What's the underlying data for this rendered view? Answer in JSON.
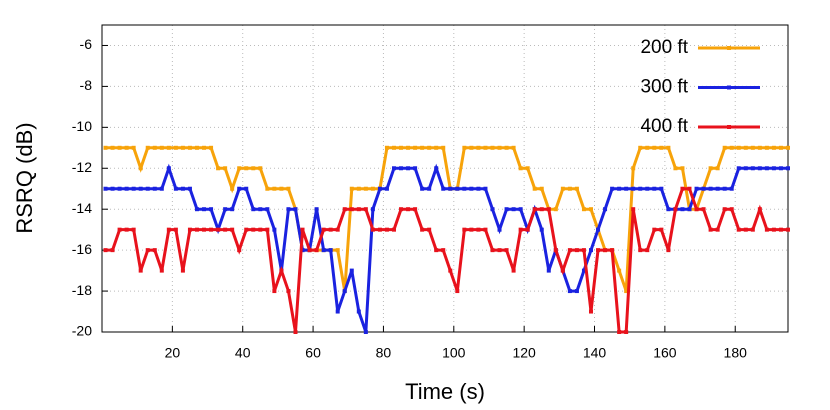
{
  "chart_data": {
    "type": "line",
    "xlabel": "Time (s)",
    "ylabel": "RSRQ (dB)",
    "x": [
      1,
      3,
      5,
      7,
      9,
      11,
      13,
      15,
      17,
      19,
      21,
      23,
      25,
      27,
      29,
      31,
      33,
      35,
      37,
      39,
      41,
      43,
      45,
      47,
      49,
      51,
      53,
      55,
      57,
      59,
      61,
      63,
      65,
      67,
      69,
      71,
      73,
      75,
      77,
      79,
      81,
      83,
      85,
      87,
      89,
      91,
      93,
      95,
      97,
      99,
      101,
      103,
      105,
      107,
      109,
      111,
      113,
      115,
      117,
      119,
      121,
      123,
      125,
      127,
      129,
      131,
      133,
      135,
      137,
      139,
      141,
      143,
      145,
      147,
      149,
      151,
      153,
      155,
      157,
      159,
      161,
      163,
      165,
      167,
      169,
      171,
      173,
      175,
      177,
      179,
      181,
      183,
      185,
      187,
      189,
      191,
      193,
      195
    ],
    "series": [
      {
        "name": "200 ft",
        "color": "#f7a30a",
        "values": [
          -11,
          -11,
          -11,
          -11,
          -11,
          -12,
          -11,
          -11,
          -11,
          -11,
          -11,
          -11,
          -11,
          -11,
          -11,
          -11,
          -12,
          -12,
          -13,
          -12,
          -12,
          -12,
          -12,
          -13,
          -13,
          -13,
          -13,
          -14,
          -16,
          -16,
          -16,
          -16,
          -16,
          -16,
          -18,
          -13,
          -13,
          -13,
          -13,
          -13,
          -11,
          -11,
          -11,
          -11,
          -11,
          -11,
          -11,
          -11,
          -11,
          -13,
          -13,
          -11,
          -11,
          -11,
          -11,
          -11,
          -11,
          -11,
          -11,
          -12,
          -12,
          -13,
          -13,
          -14,
          -14,
          -13,
          -13,
          -13,
          -14,
          -14,
          -15,
          -16,
          -16,
          -17,
          -18,
          -12,
          -11,
          -11,
          -11,
          -11,
          -11,
          -12,
          -12,
          -14,
          -14,
          -13,
          -12,
          -12,
          -11,
          -11,
          -11,
          -11,
          -11,
          -11,
          -11,
          -11,
          -11,
          -11
        ]
      },
      {
        "name": "300 ft",
        "color": "#1a22e0",
        "values": [
          -13,
          -13,
          -13,
          -13,
          -13,
          -13,
          -13,
          -13,
          -13,
          -12,
          -13,
          -13,
          -13,
          -14,
          -14,
          -14,
          -15,
          -14,
          -14,
          -13,
          -13,
          -14,
          -14,
          -14,
          -15,
          -17,
          -14,
          -14,
          -16,
          -16,
          -14,
          -16,
          -16,
          -19,
          -18,
          -17,
          -19,
          -20,
          -14,
          -13,
          -13,
          -12,
          -12,
          -12,
          -12,
          -13,
          -13,
          -12,
          -13,
          -13,
          -13,
          -13,
          -13,
          -13,
          -13,
          -14,
          -15,
          -14,
          -14,
          -14,
          -15,
          -14,
          -15,
          -17,
          -16,
          -17,
          -18,
          -18,
          -17,
          -16,
          -15,
          -14,
          -13,
          -13,
          -13,
          -13,
          -13,
          -13,
          -13,
          -13,
          -14,
          -14,
          -14,
          -14,
          -13,
          -13,
          -13,
          -13,
          -13,
          -13,
          -12,
          -12,
          -12,
          -12,
          -12,
          -12,
          -12,
          -12
        ]
      },
      {
        "name": "400 ft",
        "color": "#e8121c",
        "values": [
          -16,
          -16,
          -15,
          -15,
          -15,
          -17,
          -16,
          -16,
          -17,
          -15,
          -15,
          -17,
          -15,
          -15,
          -15,
          -15,
          -15,
          -15,
          -15,
          -16,
          -15,
          -15,
          -15,
          -15,
          -18,
          -17,
          -18,
          -20,
          -15,
          -16,
          -16,
          -15,
          -15,
          -15,
          -14,
          -14,
          -14,
          -14,
          -15,
          -15,
          -15,
          -15,
          -14,
          -14,
          -14,
          -15,
          -15,
          -16,
          -16,
          -17,
          -18,
          -15,
          -15,
          -15,
          -15,
          -16,
          -16,
          -16,
          -17,
          -15,
          -15,
          -14,
          -14,
          -14,
          -16,
          -17,
          -16,
          -16,
          -16,
          -19,
          -16,
          -16,
          -16,
          -20,
          -20,
          -14,
          -16,
          -16,
          -15,
          -15,
          -16,
          -14,
          -13,
          -13,
          -14,
          -14,
          -15,
          -15,
          -14,
          -14,
          -15,
          -15,
          -15,
          -14,
          -15,
          -15,
          -15,
          -15
        ]
      }
    ],
    "xlim": [
      0,
      195
    ],
    "xticks": [
      20,
      40,
      60,
      80,
      100,
      120,
      140,
      160,
      180
    ],
    "ylim": [
      -20,
      -5
    ],
    "yticks": [
      -20,
      -18,
      -16,
      -14,
      -12,
      -10,
      -8,
      -6
    ],
    "grid": true,
    "legend": "upper right"
  }
}
